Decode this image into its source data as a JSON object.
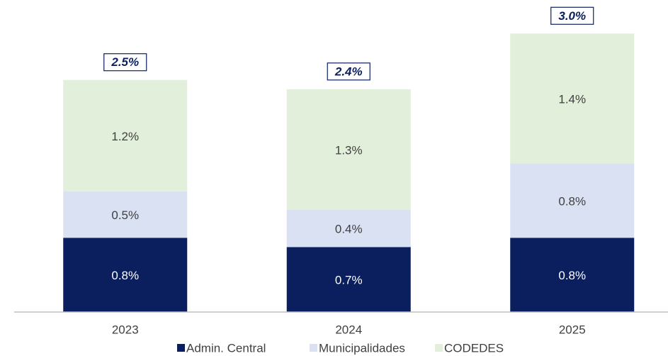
{
  "chart_data": {
    "type": "stacked_bar",
    "categories": [
      "2023",
      "2024",
      "2025"
    ],
    "series": [
      {
        "name": "Admin. Central",
        "color": "#0b1f5e",
        "values": [
          0.8,
          0.7,
          0.8
        ],
        "value_labels": [
          "0.8%",
          "0.7%",
          "0.8%"
        ]
      },
      {
        "name": "Municipalidades",
        "color": "#d9e1f2",
        "values": [
          0.5,
          0.4,
          0.8
        ],
        "value_labels": [
          "0.5%",
          "0.4%",
          "0.8%"
        ]
      },
      {
        "name": "CODEDES",
        "color": "#e2efda",
        "values": [
          1.2,
          1.3,
          1.4
        ],
        "value_labels": [
          "1.2%",
          "1.3%",
          "1.4%"
        ]
      }
    ],
    "totals": [
      2.5,
      2.4,
      3.0
    ],
    "total_labels": [
      "2.5%",
      "2.4%",
      "3.0%"
    ],
    "ylim": [
      0,
      3.3
    ],
    "legend": "bottom"
  }
}
